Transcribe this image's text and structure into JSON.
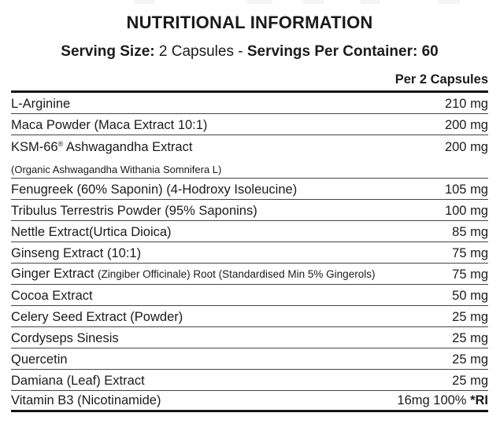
{
  "header": {
    "title": "NUTRITIONAL INFORMATION",
    "serving_size_label": "Serving Size:",
    "serving_size_value": " 2 Capsules - ",
    "servings_per_container": "Servings Per Container: 60",
    "column_header": "Per 2 Capsules"
  },
  "table": {
    "rows": [
      {
        "type": "item",
        "name": "L-Arginine",
        "value": "210 mg",
        "border": "thin"
      },
      {
        "type": "item",
        "name": "Maca Powder (Maca Extract 10:1)",
        "value": "200 mg",
        "border": "thin"
      },
      {
        "type": "item",
        "name": "KSM-66",
        "sup": "®",
        "name_after_sup": " Ashwagandha Extract",
        "value": "200 mg",
        "border": "none"
      },
      {
        "type": "sub",
        "name": "(Organic Ashwagandha Withania Somnifera L)",
        "border": "thin"
      },
      {
        "type": "item",
        "name": "Fenugreek (60% Saponin) (4-Hodroxy Isoleucine)",
        "value": "105 mg",
        "border": "thin"
      },
      {
        "type": "item",
        "name": "Tribulus Terrestris Powder (95% Saponins)",
        "value": "100 mg",
        "border": "thin"
      },
      {
        "type": "item",
        "name": "Nettle Extract(Urtica Dioica)",
        "value": "85 mg",
        "border": "thin"
      },
      {
        "type": "item",
        "name": "Ginseng Extract (10:1)",
        "value": "75 mg",
        "border": "thin"
      },
      {
        "type": "item",
        "name": "Ginger Extract ",
        "small": "(Zingiber Officinale) Root (Standardised Min 5% Gingerols)",
        "value": "75 mg",
        "border": "thin"
      },
      {
        "type": "item",
        "name": "Cocoa Extract",
        "value": "50 mg",
        "border": "thin"
      },
      {
        "type": "item",
        "name": "Celery Seed Extract (Powder)",
        "value": "25 mg",
        "border": "thin"
      },
      {
        "type": "item",
        "name": "Cordyseps Sinesis",
        "value": "25 mg",
        "border": "thin"
      },
      {
        "type": "item",
        "name": "Quercetin",
        "value": "25 mg",
        "border": "thin"
      },
      {
        "type": "item",
        "name": "Damiana (Leaf) Extract",
        "value": "25 mg",
        "border": "thin"
      },
      {
        "type": "item",
        "name": "Vitamin B3 (Nicotinamide)",
        "value": "16mg 100% ",
        "value_bold": "*RI",
        "border": "thick"
      }
    ]
  },
  "colors": {
    "background": "#ffffff",
    "text": "#1b1b1b",
    "rule_thin": "#454545",
    "rule_thick": "#141414"
  }
}
